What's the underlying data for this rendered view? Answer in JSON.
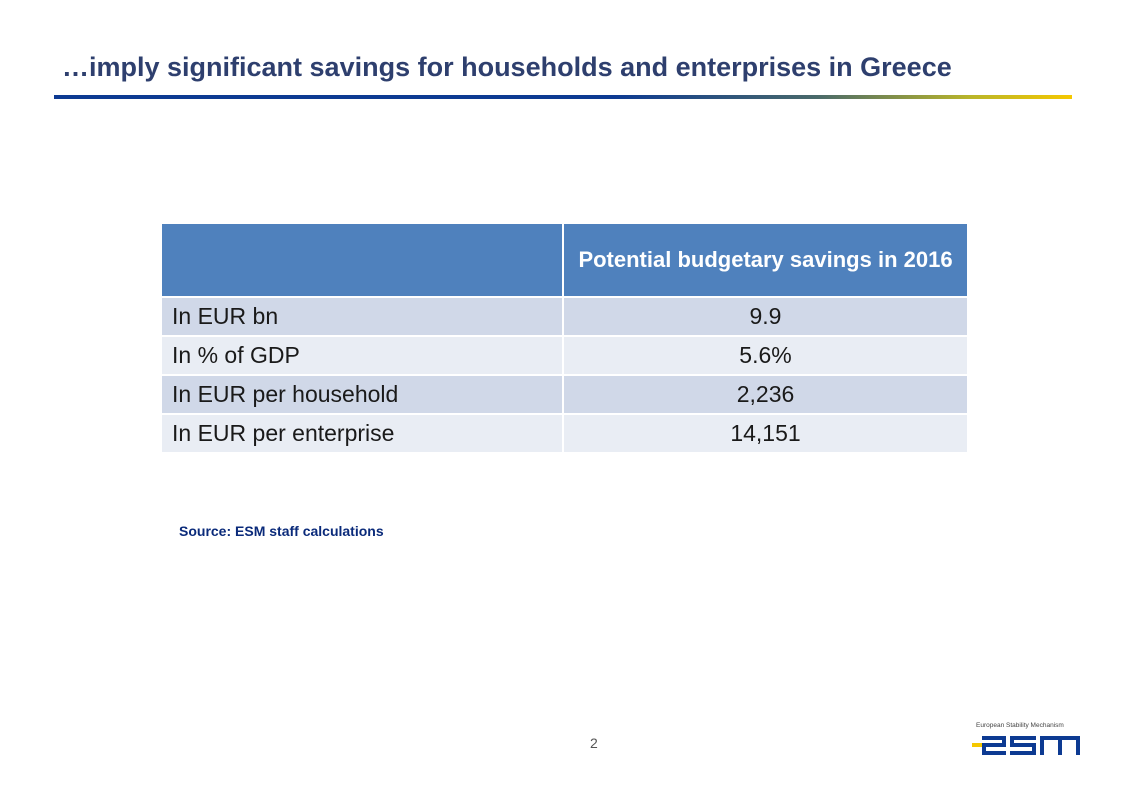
{
  "header": {
    "title": "…imply significant savings for households and enterprises in Greece"
  },
  "table": {
    "columns": [
      "",
      "Potential budgetary savings in 2016"
    ],
    "rows": [
      {
        "label": "In EUR bn",
        "value": "9.9"
      },
      {
        "label": "In % of GDP",
        "value": "5.6%"
      },
      {
        "label": "In EUR per household",
        "value": "2,236"
      },
      {
        "label": "In EUR per enterprise",
        "value": "14,151"
      }
    ]
  },
  "footer": {
    "source": "Source: ESM staff calculations",
    "page_number": "2",
    "logo_tagline": "European Stability Mechanism",
    "logo_text": "esm"
  },
  "colors": {
    "header_fill": "#4f81bd",
    "row_dark": "#d0d8e8",
    "row_light": "#e9edf4",
    "title_text": "#2e3f6e",
    "logo_blue": "#0d3a92",
    "logo_yellow": "#f5c800"
  }
}
